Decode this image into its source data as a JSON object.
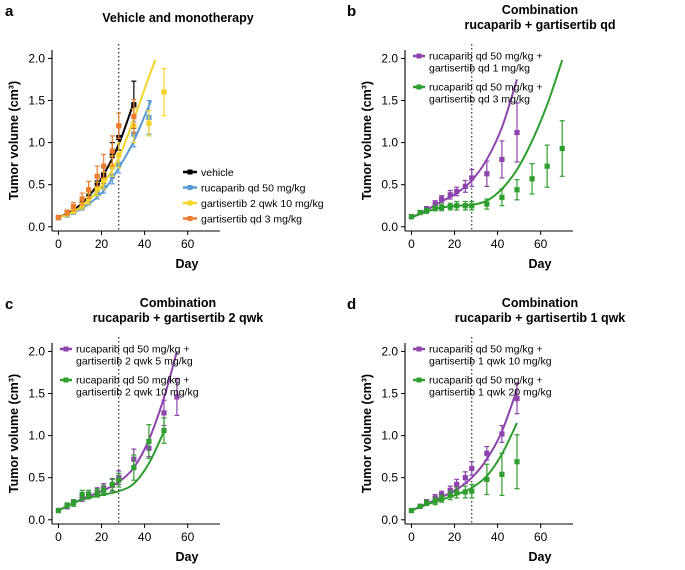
{
  "chart_data": [
    {
      "type": "line",
      "panel_label": "a",
      "title_lines": [
        "Vehicle and monotherapy"
      ],
      "xlabel": "Day",
      "ylabel": "Tumor volume (cm³)",
      "xlim": [
        -3,
        75
      ],
      "ylim": [
        -0.05,
        2.1
      ],
      "xticks": [
        0,
        20,
        40,
        60
      ],
      "yticks": [
        0.0,
        0.5,
        1.0,
        1.5,
        2.0
      ],
      "xtick_labels": [
        "0",
        "20",
        "40",
        "60"
      ],
      "ytick_labels": [
        "0.0",
        "0.5",
        "1.0",
        "1.5",
        "2.0"
      ],
      "dosing_end_day": 28,
      "series": [
        {
          "name": "vehicle",
          "legend": [
            "vehicle"
          ],
          "color": "#000000",
          "fit_x": [
            0,
            7,
            14,
            21,
            28,
            35
          ],
          "fit_y": [
            0.11,
            0.2,
            0.36,
            0.62,
            0.98,
            1.48
          ],
          "obs_x": [
            0,
            4,
            7,
            11,
            14,
            18,
            21,
            25,
            28,
            35
          ],
          "obs_y": [
            0.11,
            0.15,
            0.2,
            0.28,
            0.37,
            0.52,
            0.62,
            0.85,
            1.06,
            1.45
          ],
          "obs_err": [
            0.02,
            0.03,
            0.04,
            0.06,
            0.07,
            0.08,
            0.1,
            0.15,
            0.15,
            0.28
          ]
        },
        {
          "name": "rucaparib qd 50 mg/kg",
          "legend": [
            "rucaparib qd 50 mg/kg"
          ],
          "color": "#5b9bd5",
          "fit_x": [
            0,
            7,
            14,
            21,
            28,
            35,
            43
          ],
          "fit_y": [
            0.11,
            0.17,
            0.27,
            0.43,
            0.7,
            1.02,
            1.5
          ],
          "obs_x": [
            0,
            4,
            7,
            11,
            14,
            18,
            21,
            25,
            28,
            35,
            42
          ],
          "obs_y": [
            0.11,
            0.14,
            0.18,
            0.24,
            0.31,
            0.39,
            0.47,
            0.6,
            0.74,
            1.1,
            1.3
          ],
          "obs_err": [
            0.02,
            0.02,
            0.03,
            0.04,
            0.05,
            0.06,
            0.07,
            0.09,
            0.1,
            0.15,
            0.2
          ]
        },
        {
          "name": "gartisertib 2 qwk 10 mg/kg",
          "legend": [
            "gartisertib 2 qwk 10 mg/kg"
          ],
          "color": "#f5d327",
          "fit_x": [
            0,
            7,
            14,
            21,
            28,
            35,
            42,
            45
          ],
          "fit_y": [
            0.11,
            0.18,
            0.31,
            0.52,
            0.82,
            1.28,
            1.78,
            1.98
          ],
          "obs_x": [
            0,
            4,
            7,
            11,
            14,
            18,
            21,
            25,
            28,
            35,
            42,
            49
          ],
          "obs_y": [
            0.11,
            0.15,
            0.19,
            0.26,
            0.33,
            0.45,
            0.55,
            0.72,
            0.85,
            1.2,
            1.23,
            1.6
          ],
          "obs_err": [
            0.02,
            0.02,
            0.03,
            0.05,
            0.06,
            0.08,
            0.1,
            0.12,
            0.15,
            0.2,
            0.15,
            0.28
          ]
        },
        {
          "name": "gartisertib qd 3 mg/kg",
          "legend": [
            "gartisertib qd 3 mg/kg"
          ],
          "color": "#ed7d31",
          "fit_x": [],
          "fit_y": [],
          "obs_x": [
            0,
            4,
            7,
            11,
            14,
            18,
            21,
            25,
            28,
            35
          ],
          "obs_y": [
            0.11,
            0.17,
            0.24,
            0.33,
            0.44,
            0.6,
            0.72,
            0.9,
            1.2,
            1.31
          ],
          "obs_err": [
            0.02,
            0.03,
            0.05,
            0.07,
            0.1,
            0.12,
            0.14,
            0.18,
            0.15,
            0.2
          ]
        }
      ]
    },
    {
      "type": "line",
      "panel_label": "b",
      "title_lines": [
        "Combination",
        "rucaparib + gartisertib qd"
      ],
      "xlabel": "Day",
      "ylabel": "Tumor volume (cm³)",
      "xlim": [
        -3,
        75
      ],
      "ylim": [
        -0.05,
        2.1
      ],
      "xticks": [
        0,
        20,
        40,
        60
      ],
      "yticks": [
        0.0,
        0.5,
        1.0,
        1.5,
        2.0
      ],
      "xtick_labels": [
        "0",
        "20",
        "40",
        "60"
      ],
      "ytick_labels": [
        "0.0",
        "0.5",
        "1.0",
        "1.5",
        "2.0"
      ],
      "dosing_end_day": 28,
      "series": [
        {
          "name": "rucaparib qd 50 mg/kg + gartisertib qd 1 mg/kg",
          "legend": [
            "rucaparib qd 50 mg/kg +",
            "gartisertib qd 1 mg/kg"
          ],
          "color": "#8e44ad",
          "fit_x": [
            0,
            7,
            14,
            21,
            28,
            35,
            42,
            49
          ],
          "fit_y": [
            0.11,
            0.2,
            0.3,
            0.4,
            0.55,
            0.8,
            1.18,
            1.75
          ],
          "obs_x": [
            0,
            4,
            7,
            11,
            14,
            18,
            21,
            25,
            28,
            35,
            42,
            49
          ],
          "obs_y": [
            0.12,
            0.17,
            0.21,
            0.27,
            0.33,
            0.38,
            0.42,
            0.48,
            0.58,
            0.63,
            0.8,
            1.12
          ],
          "obs_err": [
            0.02,
            0.02,
            0.03,
            0.04,
            0.04,
            0.05,
            0.05,
            0.07,
            0.1,
            0.15,
            0.22,
            0.35
          ]
        },
        {
          "name": "rucaparib qd 50 mg/kg + gartisertib qd 3 mg/kg",
          "legend": [
            "rucaparib qd 50 mg/kg +",
            "gartisertib qd 3 mg/kg"
          ],
          "color": "#2e9e2e",
          "fit_x": [
            0,
            7,
            14,
            21,
            28,
            35,
            42,
            49,
            56,
            63,
            70
          ],
          "fit_y": [
            0.11,
            0.18,
            0.23,
            0.25,
            0.26,
            0.31,
            0.45,
            0.68,
            1.02,
            1.45,
            1.98
          ],
          "obs_x": [
            0,
            4,
            7,
            11,
            14,
            18,
            21,
            25,
            28,
            35,
            42,
            49,
            56,
            63,
            70
          ],
          "obs_y": [
            0.12,
            0.17,
            0.19,
            0.22,
            0.23,
            0.24,
            0.25,
            0.25,
            0.25,
            0.27,
            0.35,
            0.44,
            0.57,
            0.72,
            0.93
          ],
          "obs_err": [
            0.02,
            0.02,
            0.03,
            0.03,
            0.04,
            0.04,
            0.05,
            0.05,
            0.05,
            0.06,
            0.1,
            0.12,
            0.18,
            0.25,
            0.33
          ]
        }
      ]
    },
    {
      "type": "line",
      "panel_label": "c",
      "title_lines": [
        "Combination",
        "rucaparib + gartisertib 2 qwk"
      ],
      "xlabel": "Day",
      "ylabel": "Tumor volume (cm³)",
      "xlim": [
        -3,
        75
      ],
      "ylim": [
        -0.05,
        2.1
      ],
      "xticks": [
        0,
        20,
        40,
        60
      ],
      "yticks": [
        0.0,
        0.5,
        1.0,
        1.5,
        2.0
      ],
      "xtick_labels": [
        "0",
        "20",
        "40",
        "60"
      ],
      "ytick_labels": [
        "0.0",
        "0.5",
        "1.0",
        "1.5",
        "2.0"
      ],
      "dosing_end_day": 28,
      "series": [
        {
          "name": "rucaparib qd 50 mg/kg + gartisertib 2 qwk 5 mg/kg",
          "legend": [
            "rucaparib qd 50 mg/kg +",
            "gartisertib 2 qwk 5 mg/kg"
          ],
          "color": "#8e44ad",
          "fit_x": [
            0,
            7,
            14,
            21,
            28,
            35,
            42,
            49,
            55
          ],
          "fit_y": [
            0.11,
            0.2,
            0.28,
            0.35,
            0.45,
            0.62,
            0.95,
            1.45,
            2.0
          ],
          "obs_x": [
            0,
            4,
            7,
            11,
            14,
            18,
            21,
            25,
            28,
            35,
            42,
            49,
            55
          ],
          "obs_y": [
            0.11,
            0.16,
            0.21,
            0.26,
            0.29,
            0.33,
            0.37,
            0.41,
            0.5,
            0.72,
            0.85,
            1.27,
            1.46
          ],
          "obs_err": [
            0.02,
            0.03,
            0.03,
            0.04,
            0.04,
            0.05,
            0.06,
            0.07,
            0.08,
            0.12,
            0.1,
            0.15,
            0.22
          ]
        },
        {
          "name": "rucaparib qd 50 mg/kg + gartisertib 2 qwk 10 mg/kg",
          "legend": [
            "rucaparib qd 50 mg/kg +",
            "gartisertib 2 qwk 10 mg/kg"
          ],
          "color": "#2e9e2e",
          "fit_x": [
            0,
            7,
            14,
            21,
            28,
            35,
            42,
            49
          ],
          "fit_y": [
            0.11,
            0.2,
            0.26,
            0.3,
            0.34,
            0.43,
            0.67,
            1.05
          ],
          "obs_x": [
            0,
            4,
            7,
            11,
            14,
            18,
            21,
            25,
            28,
            35,
            42,
            49
          ],
          "obs_y": [
            0.11,
            0.17,
            0.2,
            0.3,
            0.3,
            0.32,
            0.35,
            0.42,
            0.47,
            0.62,
            0.93,
            1.06
          ],
          "obs_err": [
            0.02,
            0.03,
            0.04,
            0.05,
            0.05,
            0.05,
            0.06,
            0.07,
            0.08,
            0.15,
            0.2,
            0.15
          ]
        }
      ]
    },
    {
      "type": "line",
      "panel_label": "d",
      "title_lines": [
        "Combination",
        "rucaparib + gartisertib 1 qwk"
      ],
      "xlabel": "Day",
      "ylabel": "Tumor volume (cm³)",
      "xlim": [
        -3,
        75
      ],
      "ylim": [
        -0.05,
        2.1
      ],
      "xticks": [
        0,
        20,
        40,
        60
      ],
      "yticks": [
        0.0,
        0.5,
        1.0,
        1.5,
        2.0
      ],
      "xtick_labels": [
        "0",
        "20",
        "40",
        "60"
      ],
      "ytick_labels": [
        "0.0",
        "0.5",
        "1.0",
        "1.5",
        "2.0"
      ],
      "dosing_end_day": 28,
      "series": [
        {
          "name": "rucaparib qd 50 mg/kg + gartisertib 1 qwk 10 mg/kg",
          "legend": [
            "rucaparib qd 50 mg/kg +",
            "gartisertib 1 qwk 10 mg/kg"
          ],
          "color": "#8e44ad",
          "fit_x": [
            0,
            7,
            14,
            21,
            28,
            35,
            42,
            49
          ],
          "fit_y": [
            0.11,
            0.19,
            0.27,
            0.36,
            0.5,
            0.72,
            1.05,
            1.55
          ],
          "obs_x": [
            0,
            4,
            7,
            11,
            14,
            18,
            21,
            25,
            28,
            35,
            42,
            49
          ],
          "obs_y": [
            0.11,
            0.16,
            0.21,
            0.26,
            0.3,
            0.35,
            0.42,
            0.5,
            0.61,
            0.79,
            1.02,
            1.44
          ],
          "obs_err": [
            0.02,
            0.02,
            0.03,
            0.04,
            0.04,
            0.05,
            0.06,
            0.07,
            0.08,
            0.08,
            0.1,
            0.18
          ]
        },
        {
          "name": "rucaparib qd 50 mg/kg + gartisertib 1 qwk 20 mg/kg",
          "legend": [
            "rucaparib qd 50 mg/kg +",
            "gartisertib 1 qwk 20 mg/kg"
          ],
          "color": "#2e9e2e",
          "fit_x": [
            0,
            7,
            14,
            21,
            28,
            35,
            42,
            49
          ],
          "fit_y": [
            0.11,
            0.18,
            0.24,
            0.3,
            0.38,
            0.52,
            0.78,
            1.15
          ],
          "obs_x": [
            0,
            4,
            7,
            11,
            14,
            18,
            21,
            25,
            28,
            35,
            42,
            49
          ],
          "obs_y": [
            0.11,
            0.16,
            0.2,
            0.22,
            0.25,
            0.29,
            0.32,
            0.33,
            0.34,
            0.48,
            0.54,
            0.69
          ],
          "obs_err": [
            0.02,
            0.02,
            0.03,
            0.04,
            0.04,
            0.05,
            0.06,
            0.07,
            0.08,
            0.18,
            0.25,
            0.32
          ]
        }
      ]
    }
  ]
}
